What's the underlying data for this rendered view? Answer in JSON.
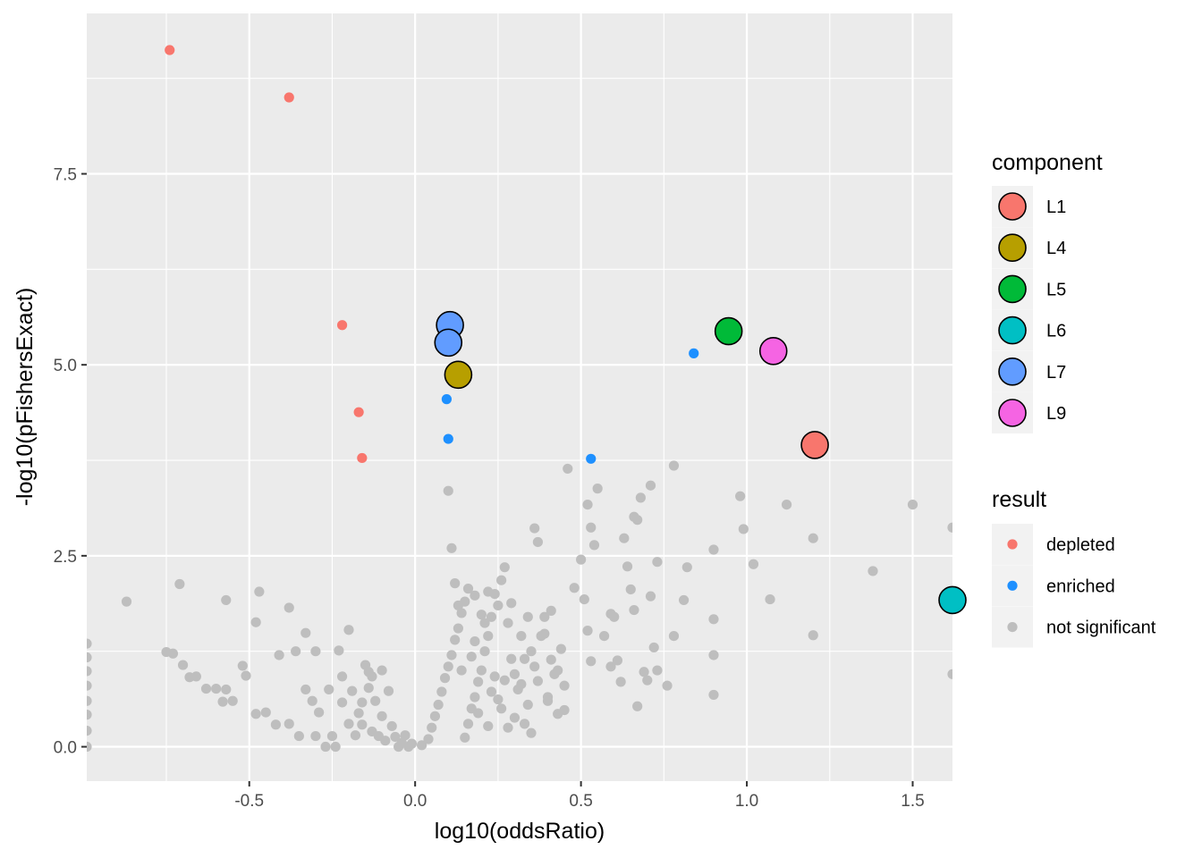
{
  "chart_data": {
    "type": "scatter",
    "xlabel": "log10(oddsRatio)",
    "ylabel": "-log10(pFishersExact)",
    "xlim": [
      -0.99,
      1.62
    ],
    "ylim": [
      -0.45,
      9.6
    ],
    "x_ticks": [
      -0.5,
      0.0,
      0.5,
      1.0,
      1.5
    ],
    "x_tick_labels": [
      "-0.5",
      "0.0",
      "0.5",
      "1.0",
      "1.5"
    ],
    "y_ticks": [
      0.0,
      2.5,
      5.0,
      7.5
    ],
    "y_tick_labels": [
      "0.0",
      "2.5",
      "5.0",
      "7.5"
    ],
    "grid": true,
    "legend_position": "right",
    "colors": {
      "panel_bg": "#ebebeb",
      "grid": "#ffffff",
      "depleted": "#f8766d",
      "enriched": "#1e90ff",
      "not_significant": "#bebebe"
    },
    "legends": [
      {
        "title": "component",
        "items": [
          {
            "label": "L1",
            "color": "#f8766d"
          },
          {
            "label": "L4",
            "color": "#b79f00"
          },
          {
            "label": "L5",
            "color": "#00ba38"
          },
          {
            "label": "L6",
            "color": "#00bfc4"
          },
          {
            "label": "L7",
            "color": "#619cff"
          },
          {
            "label": "L9",
            "color": "#f564e3"
          }
        ]
      },
      {
        "title": "result",
        "items": [
          {
            "label": "depleted",
            "color": "#f8766d"
          },
          {
            "label": "enriched",
            "color": "#1e90ff"
          },
          {
            "label": "not significant",
            "color": "#bebebe"
          }
        ]
      }
    ],
    "series": [
      {
        "name": "depleted",
        "points": [
          [
            -0.74,
            9.12
          ],
          [
            -0.38,
            8.5
          ],
          [
            -0.22,
            5.52
          ],
          [
            -0.17,
            4.38
          ],
          [
            -0.16,
            3.78
          ]
        ]
      },
      {
        "name": "enriched",
        "points": [
          [
            0.84,
            5.15
          ],
          [
            0.095,
            4.55
          ],
          [
            0.1,
            4.03
          ],
          [
            0.53,
            3.77
          ]
        ]
      },
      {
        "name": "not significant",
        "points": [
          [
            -0.87,
            1.9
          ],
          [
            -0.71,
            2.13
          ],
          [
            -0.57,
            1.92
          ],
          [
            -0.47,
            2.03
          ],
          [
            -0.38,
            1.82
          ],
          [
            -0.33,
            1.49
          ],
          [
            -0.2,
            1.53
          ],
          [
            -0.23,
            1.26
          ],
          [
            -0.3,
            1.25
          ],
          [
            -0.36,
            1.25
          ],
          [
            -0.41,
            1.2
          ],
          [
            -0.48,
            1.63
          ],
          [
            -0.52,
            1.06
          ],
          [
            -0.51,
            0.93
          ],
          [
            -0.57,
            0.75
          ],
          [
            -0.6,
            0.76
          ],
          [
            -0.63,
            0.76
          ],
          [
            -0.66,
            0.92
          ],
          [
            -0.7,
            1.07
          ],
          [
            -0.75,
            1.24
          ],
          [
            -0.73,
            1.22
          ],
          [
            -0.68,
            0.91
          ],
          [
            -0.58,
            0.59
          ],
          [
            -0.55,
            0.6
          ],
          [
            -0.48,
            0.43
          ],
          [
            -0.45,
            0.45
          ],
          [
            -0.42,
            0.29
          ],
          [
            -0.38,
            0.3
          ],
          [
            -0.35,
            0.14
          ],
          [
            -0.3,
            0.14
          ],
          [
            -0.27,
            0.0
          ],
          [
            -0.24,
            0.0
          ],
          [
            -0.2,
            0.3
          ],
          [
            -0.17,
            0.44
          ],
          [
            -0.16,
            0.58
          ],
          [
            -0.14,
            0.77
          ],
          [
            -0.13,
            0.92
          ],
          [
            -0.12,
            0.6
          ],
          [
            -0.1,
            1.0
          ],
          [
            -0.1,
            0.4
          ],
          [
            -0.08,
            0.73
          ],
          [
            -0.07,
            0.27
          ],
          [
            -0.06,
            0.13
          ],
          [
            -0.05,
            0.0
          ],
          [
            -0.04,
            0.05
          ],
          [
            -0.03,
            0.15
          ],
          [
            -0.02,
            0.0
          ],
          [
            -0.01,
            0.04
          ],
          [
            -0.15,
            1.07
          ],
          [
            -0.14,
            0.98
          ],
          [
            -0.13,
            0.2
          ],
          [
            -0.11,
            0.14
          ],
          [
            -0.09,
            0.08
          ],
          [
            -0.25,
            0.14
          ],
          [
            -0.22,
            0.58
          ],
          [
            -0.33,
            0.75
          ],
          [
            -0.31,
            0.6
          ],
          [
            -0.29,
            0.45
          ],
          [
            -0.26,
            0.75
          ],
          [
            -0.22,
            0.92
          ],
          [
            -0.18,
            0.15
          ],
          [
            -0.19,
            0.73
          ],
          [
            -0.16,
            0.29
          ],
          [
            -0.99,
            1.35
          ],
          [
            -0.99,
            1.17
          ],
          [
            -0.99,
            0.99
          ],
          [
            -0.99,
            0.8
          ],
          [
            -0.99,
            0.6
          ],
          [
            -0.99,
            0.42
          ],
          [
            -0.99,
            0.21
          ],
          [
            -0.99,
            0.0
          ],
          [
            0.02,
            0.02
          ],
          [
            0.04,
            0.1
          ],
          [
            0.05,
            0.25
          ],
          [
            0.06,
            0.4
          ],
          [
            0.07,
            0.55
          ],
          [
            0.08,
            0.72
          ],
          [
            0.09,
            0.9
          ],
          [
            0.1,
            1.05
          ],
          [
            0.11,
            1.2
          ],
          [
            0.12,
            1.4
          ],
          [
            0.13,
            1.55
          ],
          [
            0.14,
            1.75
          ],
          [
            0.15,
            1.9
          ],
          [
            0.16,
            0.3
          ],
          [
            0.17,
            0.5
          ],
          [
            0.18,
            0.65
          ],
          [
            0.19,
            0.85
          ],
          [
            0.2,
            1.0
          ],
          [
            0.21,
            1.25
          ],
          [
            0.22,
            1.45
          ],
          [
            0.23,
            1.7
          ],
          [
            0.24,
            2.0
          ],
          [
            0.25,
            1.85
          ],
          [
            0.26,
            2.18
          ],
          [
            0.27,
            2.35
          ],
          [
            0.28,
            1.62
          ],
          [
            0.29,
            1.15
          ],
          [
            0.3,
            0.95
          ],
          [
            0.31,
            0.75
          ],
          [
            0.32,
            1.45
          ],
          [
            0.33,
            1.15
          ],
          [
            0.34,
            1.7
          ],
          [
            0.35,
            1.25
          ],
          [
            0.36,
            1.05
          ],
          [
            0.37,
            0.86
          ],
          [
            0.38,
            1.45
          ],
          [
            0.39,
            1.7
          ],
          [
            0.4,
            0.65
          ],
          [
            0.41,
            1.14
          ],
          [
            0.42,
            0.95
          ],
          [
            0.43,
            0.43
          ],
          [
            0.44,
            1.28
          ],
          [
            0.45,
            0.48
          ],
          [
            0.46,
            3.64
          ],
          [
            0.48,
            2.08
          ],
          [
            0.5,
            2.45
          ],
          [
            0.51,
            1.93
          ],
          [
            0.52,
            1.52
          ],
          [
            0.53,
            1.12
          ],
          [
            0.55,
            3.38
          ],
          [
            0.54,
            2.64
          ],
          [
            0.57,
            1.45
          ],
          [
            0.59,
            1.05
          ],
          [
            0.6,
            1.7
          ],
          [
            0.61,
            1.13
          ],
          [
            0.63,
            2.73
          ],
          [
            0.64,
            2.36
          ],
          [
            0.65,
            2.06
          ],
          [
            0.68,
            3.26
          ],
          [
            0.66,
            1.79
          ],
          [
            0.69,
            0.98
          ],
          [
            0.7,
            0.87
          ],
          [
            0.73,
            2.42
          ],
          [
            0.76,
            0.8
          ],
          [
            0.12,
            2.14
          ],
          [
            0.11,
            2.6
          ],
          [
            0.1,
            3.35
          ],
          [
            0.13,
            1.85
          ],
          [
            0.16,
            2.07
          ],
          [
            0.18,
            1.98
          ],
          [
            0.2,
            1.73
          ],
          [
            0.22,
            2.03
          ],
          [
            0.24,
            0.92
          ],
          [
            0.26,
            0.5
          ],
          [
            0.28,
            0.25
          ],
          [
            0.3,
            0.38
          ],
          [
            0.32,
            0.82
          ],
          [
            0.34,
            0.55
          ],
          [
            0.36,
            2.86
          ],
          [
            0.37,
            2.68
          ],
          [
            0.39,
            1.48
          ],
          [
            0.41,
            1.78
          ],
          [
            0.43,
            1.0
          ],
          [
            0.35,
            0.18
          ],
          [
            0.25,
            0.62
          ],
          [
            0.15,
            0.12
          ],
          [
            0.22,
            0.27
          ],
          [
            0.33,
            0.3
          ],
          [
            0.18,
            1.38
          ],
          [
            0.14,
            1.0
          ],
          [
            0.27,
            0.87
          ],
          [
            0.21,
            1.62
          ],
          [
            0.19,
            0.44
          ],
          [
            0.17,
            1.18
          ],
          [
            0.23,
            0.72
          ],
          [
            0.29,
            1.88
          ],
          [
            0.52,
            3.17
          ],
          [
            0.53,
            2.87
          ],
          [
            0.59,
            1.74
          ],
          [
            0.62,
            0.85
          ],
          [
            0.67,
            2.97
          ],
          [
            0.67,
            0.53
          ],
          [
            0.71,
            1.97
          ],
          [
            0.72,
            1.3
          ],
          [
            0.73,
            1.0
          ],
          [
            0.78,
            3.68
          ],
          [
            0.78,
            1.45
          ],
          [
            0.81,
            1.92
          ],
          [
            0.82,
            2.35
          ],
          [
            0.9,
            2.58
          ],
          [
            0.9,
            1.67
          ],
          [
            0.9,
            1.2
          ],
          [
            0.9,
            0.68
          ],
          [
            0.98,
            3.28
          ],
          [
            0.99,
            2.85
          ],
          [
            1.02,
            2.39
          ],
          [
            1.07,
            1.93
          ],
          [
            1.12,
            3.17
          ],
          [
            1.2,
            2.73
          ],
          [
            1.2,
            1.46
          ],
          [
            1.38,
            2.3
          ],
          [
            1.5,
            3.17
          ],
          [
            1.62,
            2.87
          ],
          [
            1.62,
            0.95
          ],
          [
            0.66,
            3.01
          ],
          [
            0.71,
            3.42
          ],
          [
            0.4,
            0.6
          ],
          [
            0.45,
            0.8
          ]
        ]
      }
    ],
    "highlighted_components": [
      {
        "name": "L7",
        "x": 0.105,
        "y": 5.52,
        "color": "#619cff"
      },
      {
        "name": "L7",
        "x": 0.1,
        "y": 5.29,
        "color": "#619cff"
      },
      {
        "name": "L4",
        "x": 0.13,
        "y": 4.87,
        "color": "#b79f00"
      },
      {
        "name": "L5",
        "x": 0.945,
        "y": 5.44,
        "color": "#00ba38"
      },
      {
        "name": "L9",
        "x": 1.08,
        "y": 5.18,
        "color": "#f564e3"
      },
      {
        "name": "L1",
        "x": 1.205,
        "y": 3.95,
        "color": "#f8766d"
      },
      {
        "name": "L6",
        "x": 1.62,
        "y": 1.92,
        "color": "#00bfc4"
      }
    ]
  }
}
